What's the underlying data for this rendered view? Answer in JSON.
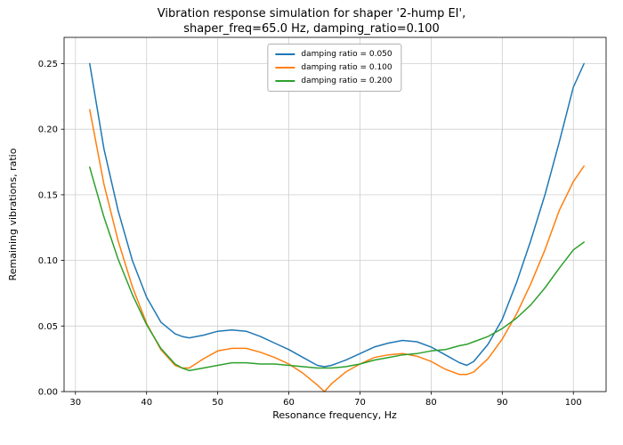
{
  "chart_data": {
    "type": "line",
    "title": "Vibration response simulation for shaper '2-hump EI',\nshaper_freq=65.0 Hz, damping_ratio=0.100",
    "xlabel": "Resonance frequency, Hz",
    "ylabel": "Remaining vibrations, ratio",
    "xlim": [
      28.4,
      104.6
    ],
    "ylim": [
      0,
      0.27
    ],
    "xticks": [
      30,
      40,
      50,
      60,
      70,
      80,
      90,
      100
    ],
    "yticks": [
      0,
      0.05,
      0.1,
      0.15,
      0.2,
      0.25
    ],
    "grid": true,
    "legend_position": "upper center",
    "grid_color": "#cfcfcf",
    "x": [
      32,
      34,
      36,
      38,
      40,
      42,
      44,
      45,
      46,
      48,
      50,
      52,
      54,
      56,
      58,
      60,
      62,
      64,
      65,
      66,
      68,
      70,
      72,
      74,
      76,
      78,
      80,
      82,
      84,
      85,
      86,
      88,
      90,
      92,
      94,
      96,
      98,
      100,
      101.5
    ],
    "series": [
      {
        "name": "damping ratio = 0.050",
        "color": "#1f77b4",
        "values": [
          0.25,
          0.185,
          0.138,
          0.1,
          0.072,
          0.053,
          0.044,
          0.042,
          0.041,
          0.043,
          0.046,
          0.047,
          0.046,
          0.042,
          0.037,
          0.032,
          0.026,
          0.02,
          0.019,
          0.02,
          0.024,
          0.029,
          0.034,
          0.037,
          0.039,
          0.038,
          0.034,
          0.028,
          0.022,
          0.02,
          0.023,
          0.036,
          0.055,
          0.083,
          0.115,
          0.15,
          0.19,
          0.232,
          0.25
        ]
      },
      {
        "name": "damping ratio = 0.100",
        "color": "#ff7f0e",
        "values": [
          0.215,
          0.158,
          0.115,
          0.08,
          0.052,
          0.032,
          0.02,
          0.018,
          0.018,
          0.025,
          0.031,
          0.033,
          0.033,
          0.03,
          0.026,
          0.021,
          0.014,
          0.005,
          0.0,
          0.006,
          0.015,
          0.021,
          0.026,
          0.028,
          0.029,
          0.027,
          0.023,
          0.017,
          0.013,
          0.013,
          0.015,
          0.025,
          0.04,
          0.059,
          0.082,
          0.108,
          0.138,
          0.16,
          0.172
        ]
      },
      {
        "name": "damping ratio = 0.200",
        "color": "#2ca02c",
        "values": [
          0.171,
          0.133,
          0.101,
          0.074,
          0.051,
          0.033,
          0.021,
          0.018,
          0.016,
          0.018,
          0.02,
          0.022,
          0.022,
          0.021,
          0.021,
          0.02,
          0.019,
          0.018,
          0.018,
          0.018,
          0.019,
          0.021,
          0.024,
          0.026,
          0.028,
          0.029,
          0.031,
          0.032,
          0.035,
          0.036,
          0.038,
          0.042,
          0.048,
          0.056,
          0.066,
          0.079,
          0.094,
          0.108,
          0.114
        ]
      }
    ]
  }
}
